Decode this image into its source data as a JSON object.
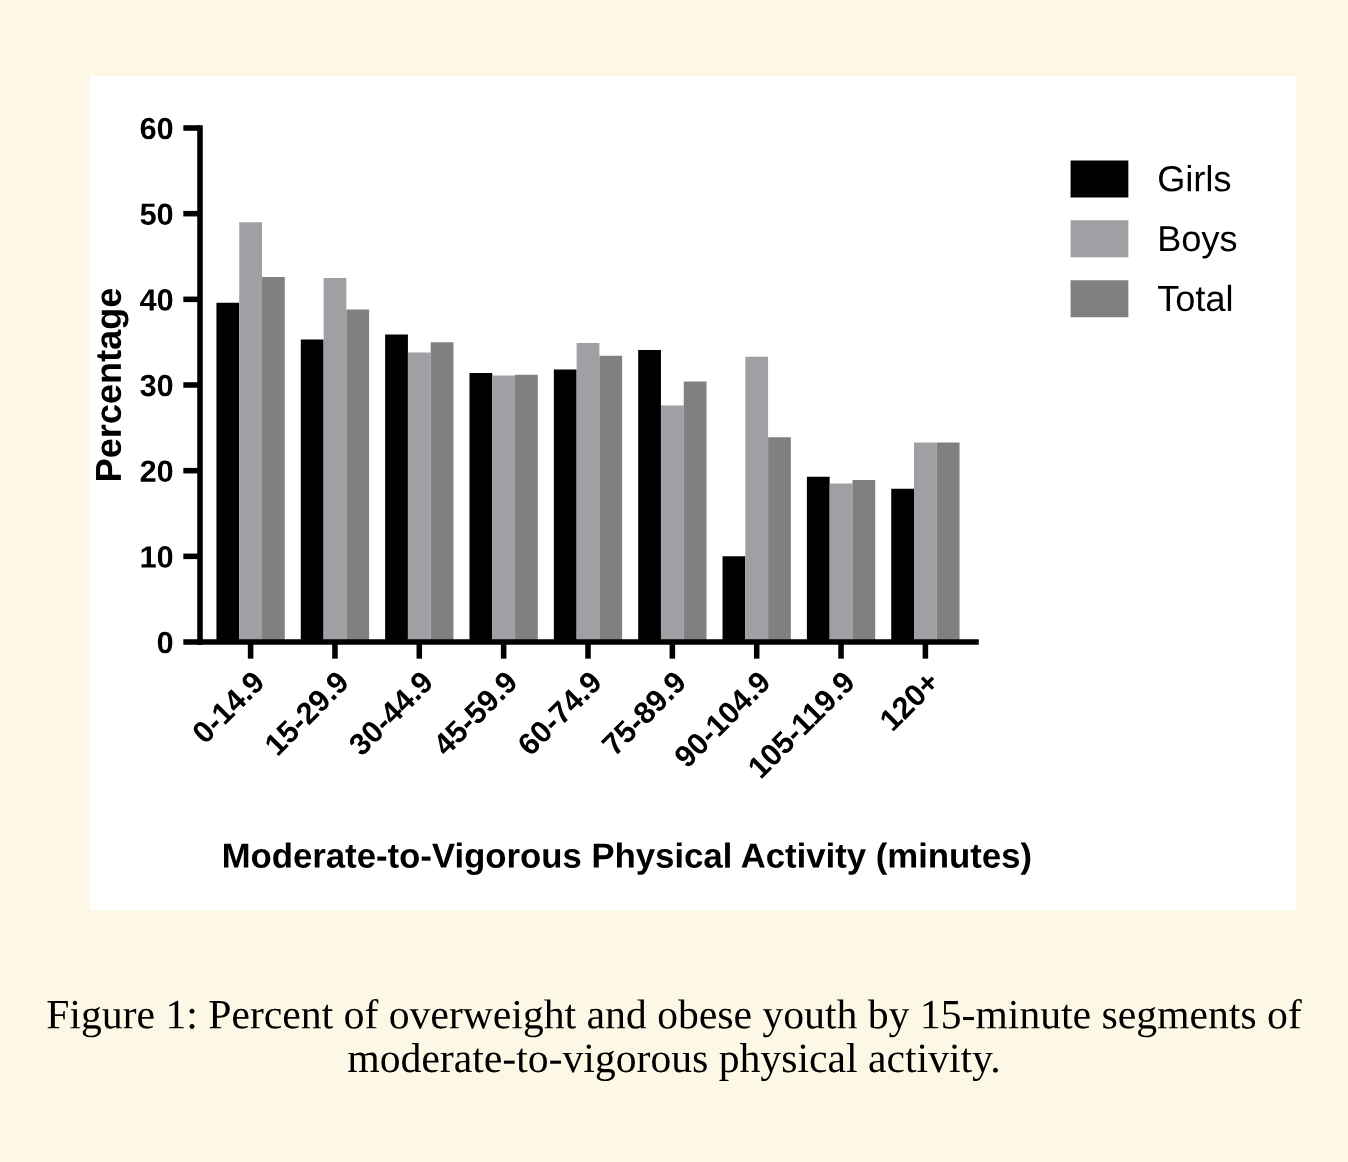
{
  "chart_data": {
    "type": "bar",
    "ylabel": "Percentage",
    "xlabel": "Moderate-to-Vigorous Physical Activity (minutes)",
    "categories": [
      "0-14.9",
      "15-29.9",
      "30-44.9",
      "45-59.9",
      "60-74.9",
      "75-89.9",
      "90-104.9",
      "105-119.9",
      "120+"
    ],
    "series": [
      {
        "name": "Girls",
        "color": "#000000",
        "values": [
          39.6,
          35.3,
          35.9,
          31.4,
          31.8,
          34.1,
          10.0,
          19.3,
          17.9
        ]
      },
      {
        "name": "Boys",
        "color": "#a0a0a4",
        "values": [
          49.0,
          42.5,
          33.8,
          31.1,
          34.9,
          27.6,
          33.3,
          18.5,
          23.3
        ]
      },
      {
        "name": "Total",
        "color": "#808080",
        "values": [
          42.6,
          38.8,
          35.0,
          31.2,
          33.4,
          30.4,
          23.9,
          18.9,
          23.3
        ]
      }
    ],
    "ylim": [
      0,
      60
    ],
    "yticks": [
      0,
      10,
      20,
      30,
      40,
      50,
      60
    ],
    "grid": false,
    "legend": "top right",
    "annotations": [
      "Figure 1: Percent of overweight and obese youth by 15-minute segments of moderate-to-vigorous physical activity."
    ]
  }
}
